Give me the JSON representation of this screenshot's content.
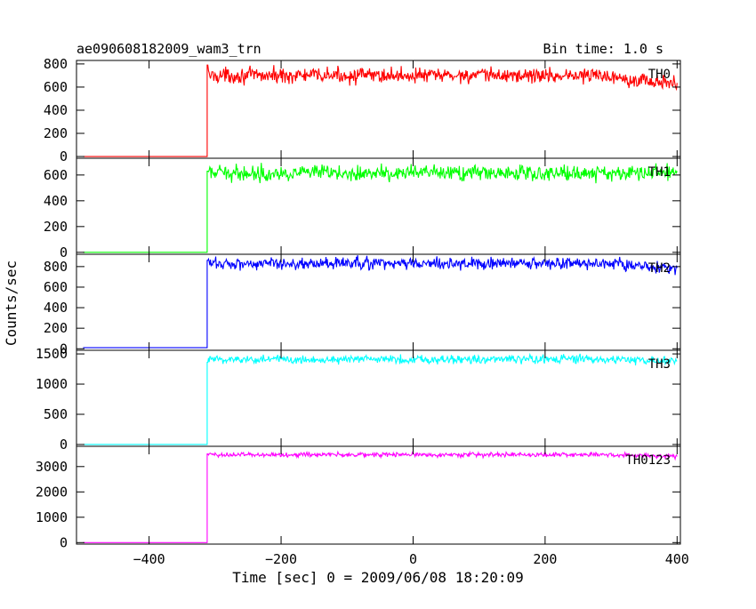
{
  "header": {
    "title": "ae090608182009_wam3_trn",
    "bin_time": "Bin time: 1.0 s"
  },
  "chart_data": {
    "type": "line",
    "xlabel": "Time [sec] 0 = 2009/06/08 18:20:09",
    "ylabel": "Counts/sec",
    "xlim": [
      -510,
      405
    ],
    "xticks": [
      -400,
      -200,
      0,
      200,
      400
    ],
    "x_tick_labels": [
      "−400",
      "−200",
      "0",
      "200",
      "400"
    ],
    "bin_time_s": 1.0,
    "onset_s": -312,
    "x_start": -500,
    "x_end": 400,
    "panels": [
      {
        "name": "TH0",
        "color": "#ff0000",
        "ylim": [
          -15,
          830
        ],
        "yticks": [
          0,
          200,
          400,
          600,
          800
        ],
        "baseline": 0,
        "peak": 790,
        "level": 700,
        "noise": 50,
        "dip_end": 620
      },
      {
        "name": "TH1",
        "color": "#00ff00",
        "ylim": [
          -15,
          730
        ],
        "yticks": [
          0,
          200,
          400,
          600
        ],
        "baseline": 0,
        "peak": 630,
        "level": 615,
        "noise": 45,
        "dip_end": 620
      },
      {
        "name": "TH2",
        "color": "#0000ff",
        "ylim": [
          -15,
          920
        ],
        "yticks": [
          0,
          200,
          400,
          600,
          800
        ],
        "baseline": 10,
        "peak": 860,
        "level": 830,
        "noise": 45,
        "dip_end": 780
      },
      {
        "name": "TH3",
        "color": "#00ffff",
        "ylim": [
          -30,
          1560
        ],
        "yticks": [
          0,
          500,
          1000,
          1500
        ],
        "baseline": 0,
        "peak": 1360,
        "level": 1410,
        "noise": 55,
        "dip_end": 1380
      },
      {
        "name": "TH0123",
        "color": "#ff00ff",
        "ylim": [
          -60,
          3800
        ],
        "yticks": [
          0,
          1000,
          2000,
          3000
        ],
        "baseline": 0,
        "peak": 3500,
        "level": 3470,
        "noise": 70,
        "dip_end": 3400
      }
    ]
  }
}
